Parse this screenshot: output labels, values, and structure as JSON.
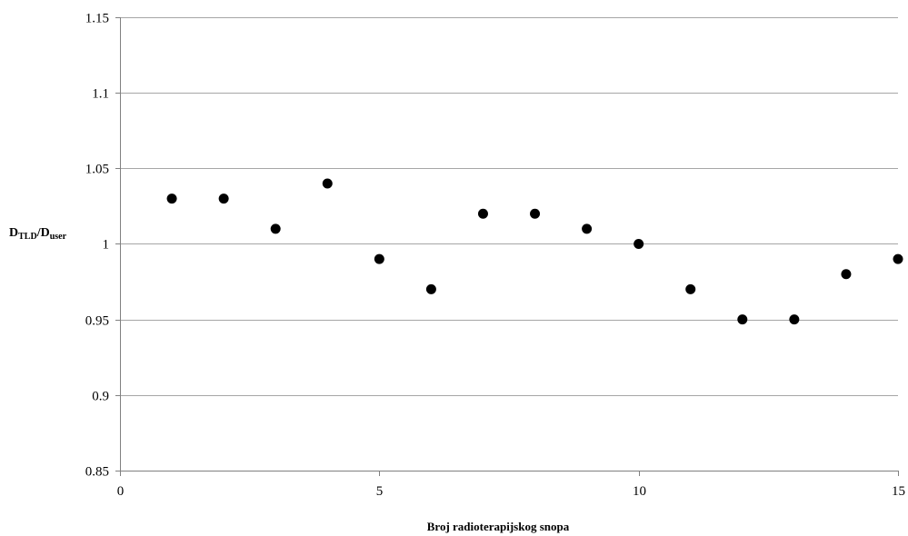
{
  "chart_data": {
    "type": "scatter",
    "title": "",
    "xlabel": "Broj radioterapijskog snopa",
    "ylabel": {
      "main1": "D",
      "sub1": "TLD",
      "slash": "/D",
      "sub2": "user"
    },
    "xlim": [
      0,
      15
    ],
    "ylim": [
      0.85,
      1.15
    ],
    "x_ticks": [
      0,
      5,
      10,
      15
    ],
    "y_ticks": [
      0.85,
      0.9,
      0.95,
      1,
      1.05,
      1.1,
      1.15
    ],
    "x_tick_labels": [
      "0",
      "5",
      "10",
      "15"
    ],
    "y_tick_labels": [
      "0.85",
      "0.9",
      "0.95",
      "1",
      "1.05",
      "1.1",
      "1.15"
    ],
    "grid": "horizontal",
    "legend": "none",
    "marker_color": "#000000",
    "grid_color": "#a6a6a6",
    "series": [
      {
        "x": [
          1,
          2,
          3,
          4,
          5,
          6,
          7,
          8,
          9,
          10,
          11,
          12,
          13,
          14,
          15
        ],
        "y": [
          1.03,
          1.03,
          1.01,
          1.04,
          0.99,
          0.97,
          1.02,
          1.02,
          1.01,
          1.0,
          0.97,
          0.95,
          0.95,
          0.98,
          0.99
        ]
      }
    ]
  }
}
